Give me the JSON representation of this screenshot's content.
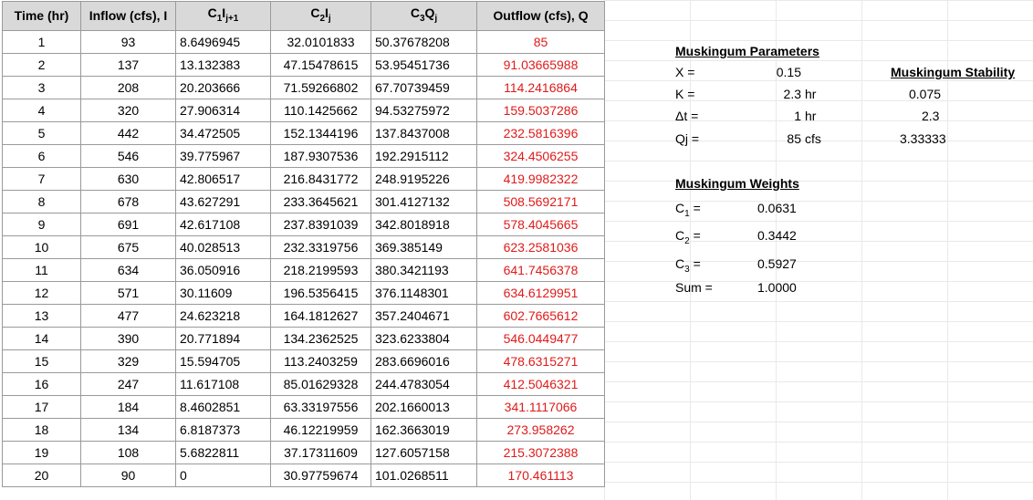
{
  "table": {
    "headers": [
      "Time (hr)",
      "Inflow (cfs), I",
      "C1Ij+1",
      "C2Ij",
      "C3Qj",
      "Outflow (cfs), Q"
    ],
    "header_parts": {
      "c1_main": "C",
      "c1_sub1": "1",
      "c1_mid": "I",
      "c1_sub2": "j+1",
      "c2_main": "C",
      "c2_sub1": "2",
      "c2_mid": "I",
      "c2_sub2": "j",
      "c3_main": "C",
      "c3_sub1": "3",
      "c3_mid": "Q",
      "c3_sub2": "j"
    },
    "rows": [
      [
        "1",
        "93",
        "8.6496945",
        "32.0101833",
        "50.37678208",
        "85"
      ],
      [
        "2",
        "137",
        "13.132383",
        "47.15478615",
        "53.95451736",
        "91.03665988"
      ],
      [
        "3",
        "208",
        "20.203666",
        "71.59266802",
        "67.70739459",
        "114.2416864"
      ],
      [
        "4",
        "320",
        "27.906314",
        "110.1425662",
        "94.53275972",
        "159.5037286"
      ],
      [
        "5",
        "442",
        "34.472505",
        "152.1344196",
        "137.8437008",
        "232.5816396"
      ],
      [
        "6",
        "546",
        "39.775967",
        "187.9307536",
        "192.2915112",
        "324.4506255"
      ],
      [
        "7",
        "630",
        "42.806517",
        "216.8431772",
        "248.9195226",
        "419.9982322"
      ],
      [
        "8",
        "678",
        "43.627291",
        "233.3645621",
        "301.4127132",
        "508.5692171"
      ],
      [
        "9",
        "691",
        "42.617108",
        "237.8391039",
        "342.8018918",
        "578.4045665"
      ],
      [
        "10",
        "675",
        "40.028513",
        "232.3319756",
        "369.385149",
        "623.2581036"
      ],
      [
        "11",
        "634",
        "36.050916",
        "218.2199593",
        "380.3421193",
        "641.7456378"
      ],
      [
        "12",
        "571",
        "30.11609",
        "196.5356415",
        "376.1148301",
        "634.6129951"
      ],
      [
        "13",
        "477",
        "24.623218",
        "164.1812627",
        "357.2404671",
        "602.7665612"
      ],
      [
        "14",
        "390",
        "20.771894",
        "134.2362525",
        "323.6233804",
        "546.0449477"
      ],
      [
        "15",
        "329",
        "15.594705",
        "113.2403259",
        "283.6696016",
        "478.6315271"
      ],
      [
        "16",
        "247",
        "11.617108",
        "85.01629328",
        "244.4783054",
        "412.5046321"
      ],
      [
        "17",
        "184",
        "8.4602851",
        "63.33197556",
        "202.1660013",
        "341.1117066"
      ],
      [
        "18",
        "134",
        "6.8187373",
        "46.12219959",
        "162.3663019",
        "273.958262"
      ],
      [
        "19",
        "108",
        "5.6822811",
        "37.17311609",
        "127.6057158",
        "215.3072388"
      ],
      [
        "20",
        "90",
        "0",
        "30.97759674",
        "101.0268511",
        "170.461113"
      ]
    ]
  },
  "params": {
    "title": "Muskingum Parameters",
    "x_label": "X =",
    "x_value": "0.15",
    "k_label": "K =",
    "k_value": "2.3",
    "k_unit": "hr",
    "dt_label": "Δt =",
    "dt_value": "1",
    "dt_unit": "hr",
    "qj_label": "Qj =",
    "qj_value": "85",
    "qj_unit": "cfs"
  },
  "stability": {
    "title": "Muskingum Stability",
    "v1": "0.075",
    "v2": "2.3",
    "v3": "3.33333"
  },
  "weights": {
    "title": "Muskingum Weights",
    "c1_main": "C",
    "c1_sub": "1",
    "c1_eq": " =",
    "c1_value": "0.0631",
    "c2_main": "C",
    "c2_sub": "2",
    "c2_eq": " =",
    "c2_value": "0.3442",
    "c3_main": "C",
    "c3_sub": "3",
    "c3_eq": " =",
    "c3_value": "0.5927",
    "sum_label": "Sum =",
    "sum_value": "1.0000"
  },
  "colors": {
    "outflow": "#e01a1a",
    "header_bg": "#d9d9d9"
  }
}
